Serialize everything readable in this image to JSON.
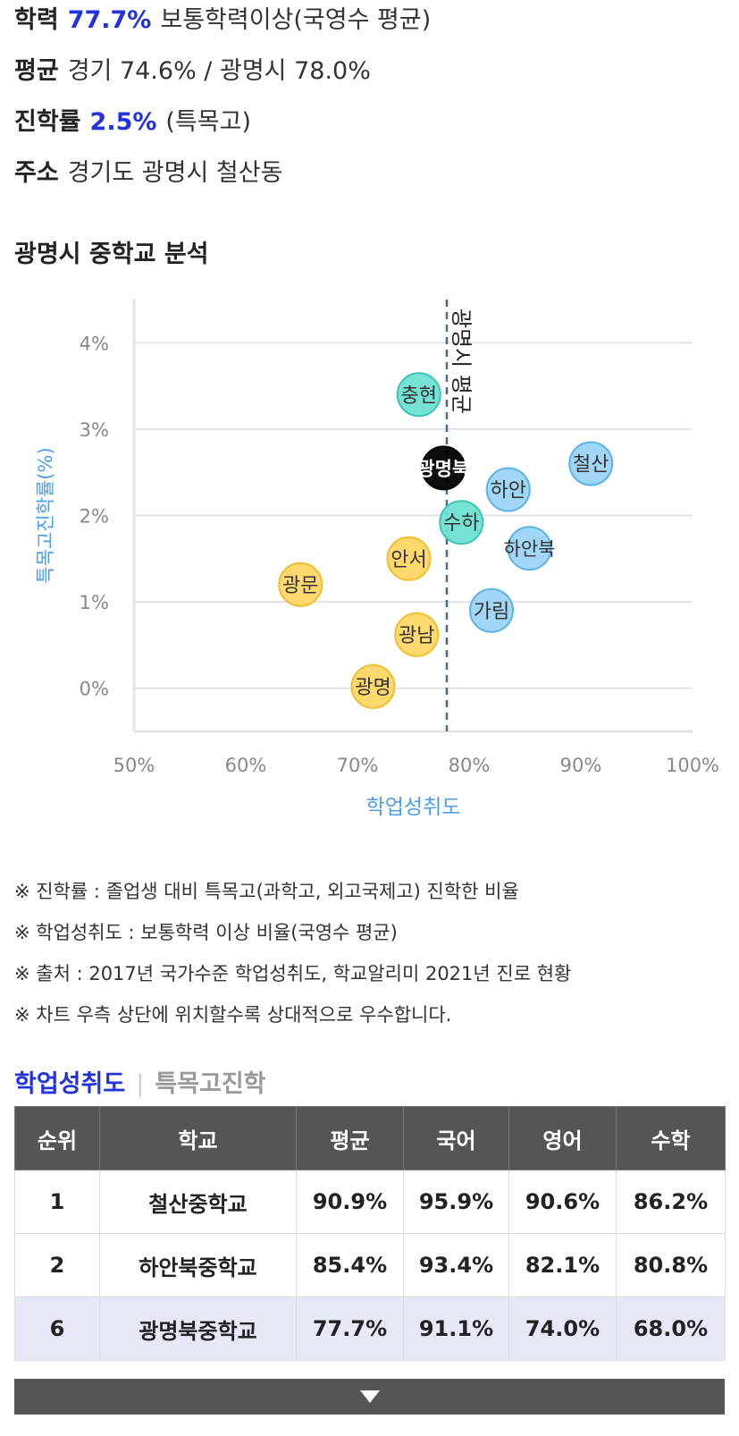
{
  "info": {
    "achievement": {
      "label": "학력",
      "value": "77.7%",
      "desc": "보통학력이상(국영수 평균)"
    },
    "average": {
      "label": "평균",
      "value": "경기 74.6% / 광명시 78.0%"
    },
    "advance": {
      "label": "진학률",
      "value": "2.5%",
      "desc": "(특목고)"
    },
    "address": {
      "label": "주소",
      "value": "경기도 광명시 철산동"
    }
  },
  "section_title": "광명시 중학교 분석",
  "colors": {
    "accent": "#2233dd",
    "axis_label": "#4a9fe6",
    "yellow": "#ffd766",
    "teal": "#6ee0d2",
    "blue": "#9dd4f5",
    "black": "#000000"
  },
  "chart_data": {
    "type": "scatter",
    "xlabel": "학업성취도",
    "ylabel": "특목고진학률(%)",
    "xlim": [
      50,
      100
    ],
    "ylim": [
      -0.5,
      4.5
    ],
    "xticks": [
      "50%",
      "60%",
      "70%",
      "80%",
      "90%",
      "100%"
    ],
    "yticks": [
      "0%",
      "1%",
      "2%",
      "3%",
      "4%"
    ],
    "grid": true,
    "reference_line": {
      "x": 78.0,
      "label": "광명시 평균"
    },
    "points": [
      {
        "name": "충현",
        "x": 75.5,
        "y": 3.4,
        "color": "teal"
      },
      {
        "name": "광명북",
        "x": 77.7,
        "y": 2.55,
        "color": "black"
      },
      {
        "name": "하안",
        "x": 83.5,
        "y": 2.3,
        "color": "blue"
      },
      {
        "name": "철산",
        "x": 90.9,
        "y": 2.6,
        "color": "blue"
      },
      {
        "name": "수하",
        "x": 79.3,
        "y": 1.92,
        "color": "teal"
      },
      {
        "name": "하안북",
        "x": 85.4,
        "y": 1.62,
        "color": "blue"
      },
      {
        "name": "안서",
        "x": 74.6,
        "y": 1.5,
        "color": "yellow"
      },
      {
        "name": "광문",
        "x": 64.9,
        "y": 1.2,
        "color": "yellow"
      },
      {
        "name": "가림",
        "x": 82.0,
        "y": 0.9,
        "color": "blue"
      },
      {
        "name": "광남",
        "x": 75.3,
        "y": 0.62,
        "color": "yellow"
      },
      {
        "name": "광명",
        "x": 71.4,
        "y": 0.02,
        "color": "yellow"
      }
    ]
  },
  "notes": [
    "※ 진학률 : 졸업생 대비 특목고(과학고, 외고국제고) 진학한 비율",
    "※ 학업성취도 : 보통학력 이상 비율(국영수 평균)",
    "※ 출처 : 2017년 국가수준 학업성취도, 학교알리미 2021년 진로 현황",
    "※ 차트 우측 상단에 위치할수록 상대적으로 우수합니다."
  ],
  "tabs": {
    "active": "학업성취도",
    "separator": "|",
    "other": "특목고진학"
  },
  "table": {
    "headers": [
      "순위",
      "학교",
      "평균",
      "국어",
      "영어",
      "수학"
    ],
    "rows": [
      [
        "1",
        "철산중학교",
        "90.9%",
        "95.9%",
        "90.6%",
        "86.2%"
      ],
      [
        "2",
        "하안북중학교",
        "85.4%",
        "93.4%",
        "82.1%",
        "80.8%"
      ],
      [
        "6",
        "광명북중학교",
        "77.7%",
        "91.1%",
        "74.0%",
        "68.0%"
      ]
    ]
  }
}
